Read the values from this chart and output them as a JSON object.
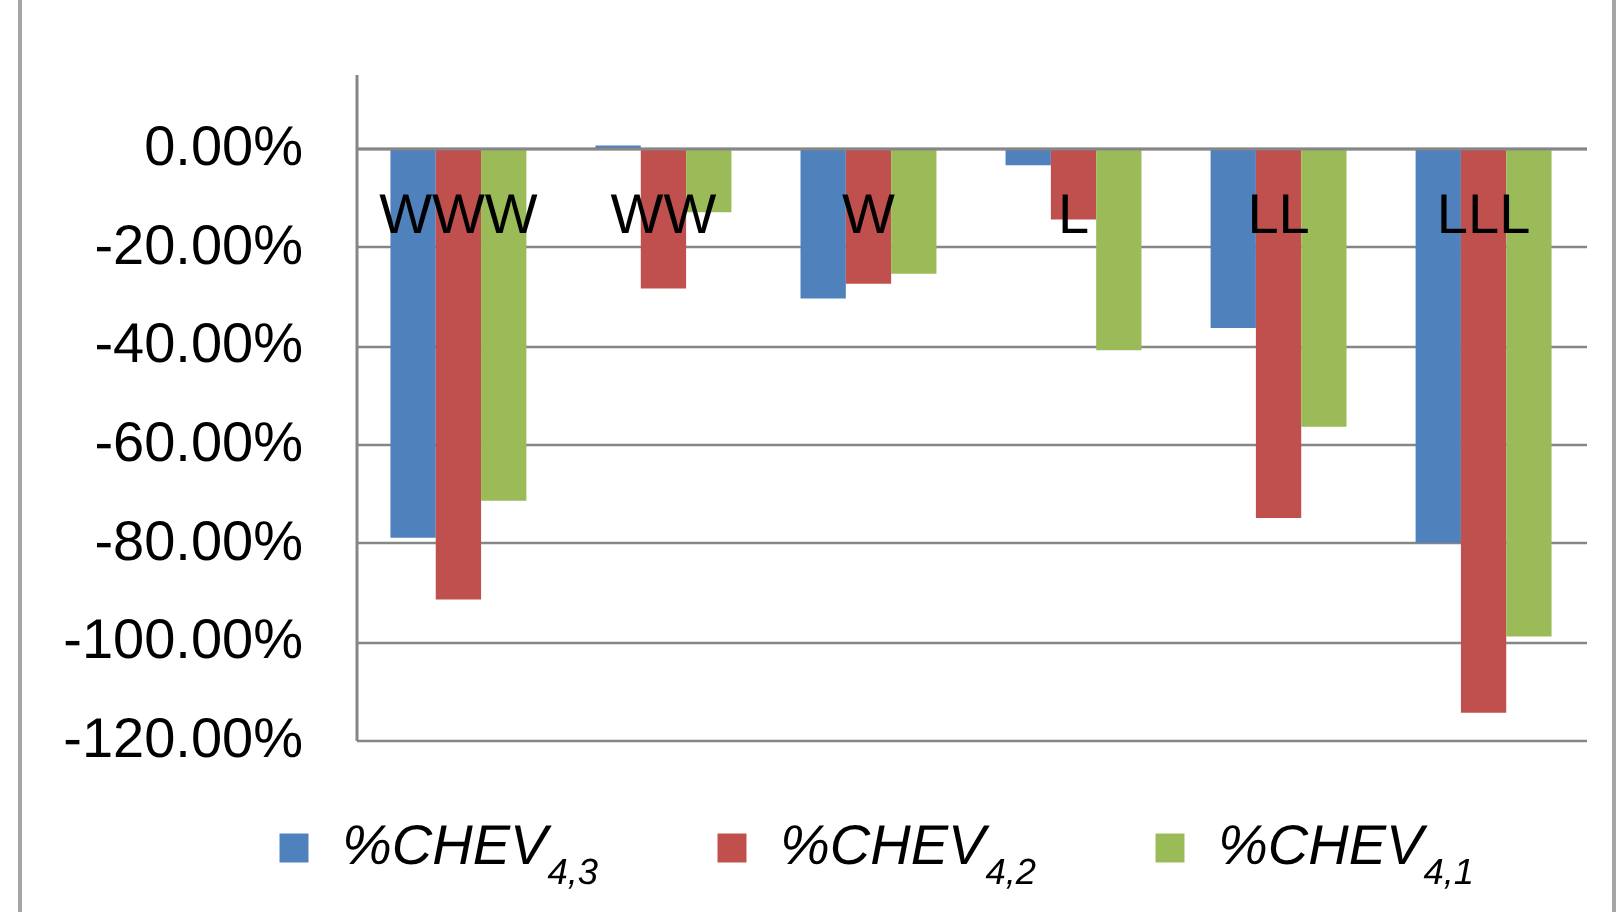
{
  "chart_data": {
    "type": "bar",
    "categories": [
      "WWW",
      "WW",
      "W",
      "L",
      "LL",
      "LLL"
    ],
    "series": [
      {
        "name": "%CHEV$_{4,3}$",
        "color": "#4f81bd",
        "values": [
          -79,
          0.5,
          -30.5,
          -3.5,
          -36.5,
          -80
        ]
      },
      {
        "name": "%CHEV$_{4,2}$",
        "color": "#c0504d",
        "values": [
          -91.5,
          -28.5,
          -27.5,
          -14.5,
          -75,
          -114.5
        ]
      },
      {
        "name": "%CHEV$_{4,1}$",
        "color": "#9bbb59",
        "values": [
          -71.5,
          -13,
          -25.5,
          -41,
          -56.5,
          -99
        ]
      }
    ],
    "ylim": [
      -120,
      15
    ],
    "yticks": [
      {
        "value": -120,
        "label": "-120.00%"
      },
      {
        "value": -100,
        "label": "-100.00%"
      },
      {
        "value": -80,
        "label": "-80.00%"
      },
      {
        "value": -60,
        "label": "-60.00%"
      },
      {
        "value": -40,
        "label": "-40.00%"
      },
      {
        "value": -20,
        "label": "-20.00%"
      },
      {
        "value": 0,
        "label": "0.00%"
      }
    ],
    "grid": "y",
    "legend": "bottom"
  }
}
